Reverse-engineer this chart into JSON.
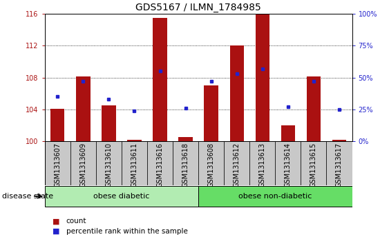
{
  "title": "GDS5167 / ILMN_1784985",
  "samples": [
    "GSM1313607",
    "GSM1313609",
    "GSM1313610",
    "GSM1313611",
    "GSM1313616",
    "GSM1313618",
    "GSM1313608",
    "GSM1313612",
    "GSM1313613",
    "GSM1313614",
    "GSM1313615",
    "GSM1313617"
  ],
  "bar_tops": [
    104.1,
    108.1,
    104.5,
    100.2,
    115.5,
    100.55,
    107.0,
    112.0,
    116.0,
    102.0,
    108.1,
    100.15
  ],
  "bar_base": 100,
  "dot_pct": [
    35,
    47,
    33,
    24,
    55,
    26,
    47,
    53,
    57,
    27,
    47,
    25
  ],
  "bar_color": "#aa1111",
  "dot_color": "#2222cc",
  "left_ylim": [
    100,
    116
  ],
  "left_yticks": [
    100,
    104,
    108,
    112,
    116
  ],
  "right_ylim": [
    0,
    100
  ],
  "right_yticks": [
    0,
    25,
    50,
    75,
    100
  ],
  "right_yticklabels": [
    "0%",
    "25%",
    "50%",
    "75%",
    "100%"
  ],
  "groups": [
    {
      "label": "obese diabetic",
      "start": 0,
      "end": 6,
      "color": "#b2ecb2"
    },
    {
      "label": "obese non-diabetic",
      "start": 6,
      "end": 12,
      "color": "#66dd66"
    }
  ],
  "disease_state_label": "disease state",
  "legend_count_label": "count",
  "legend_pct_label": "percentile rank within the sample",
  "title_fontsize": 10,
  "tick_fontsize": 7,
  "label_fontsize": 8,
  "bar_width": 0.55,
  "sample_box_color": "#c8c8c8",
  "plot_bg_color": "#ffffff"
}
